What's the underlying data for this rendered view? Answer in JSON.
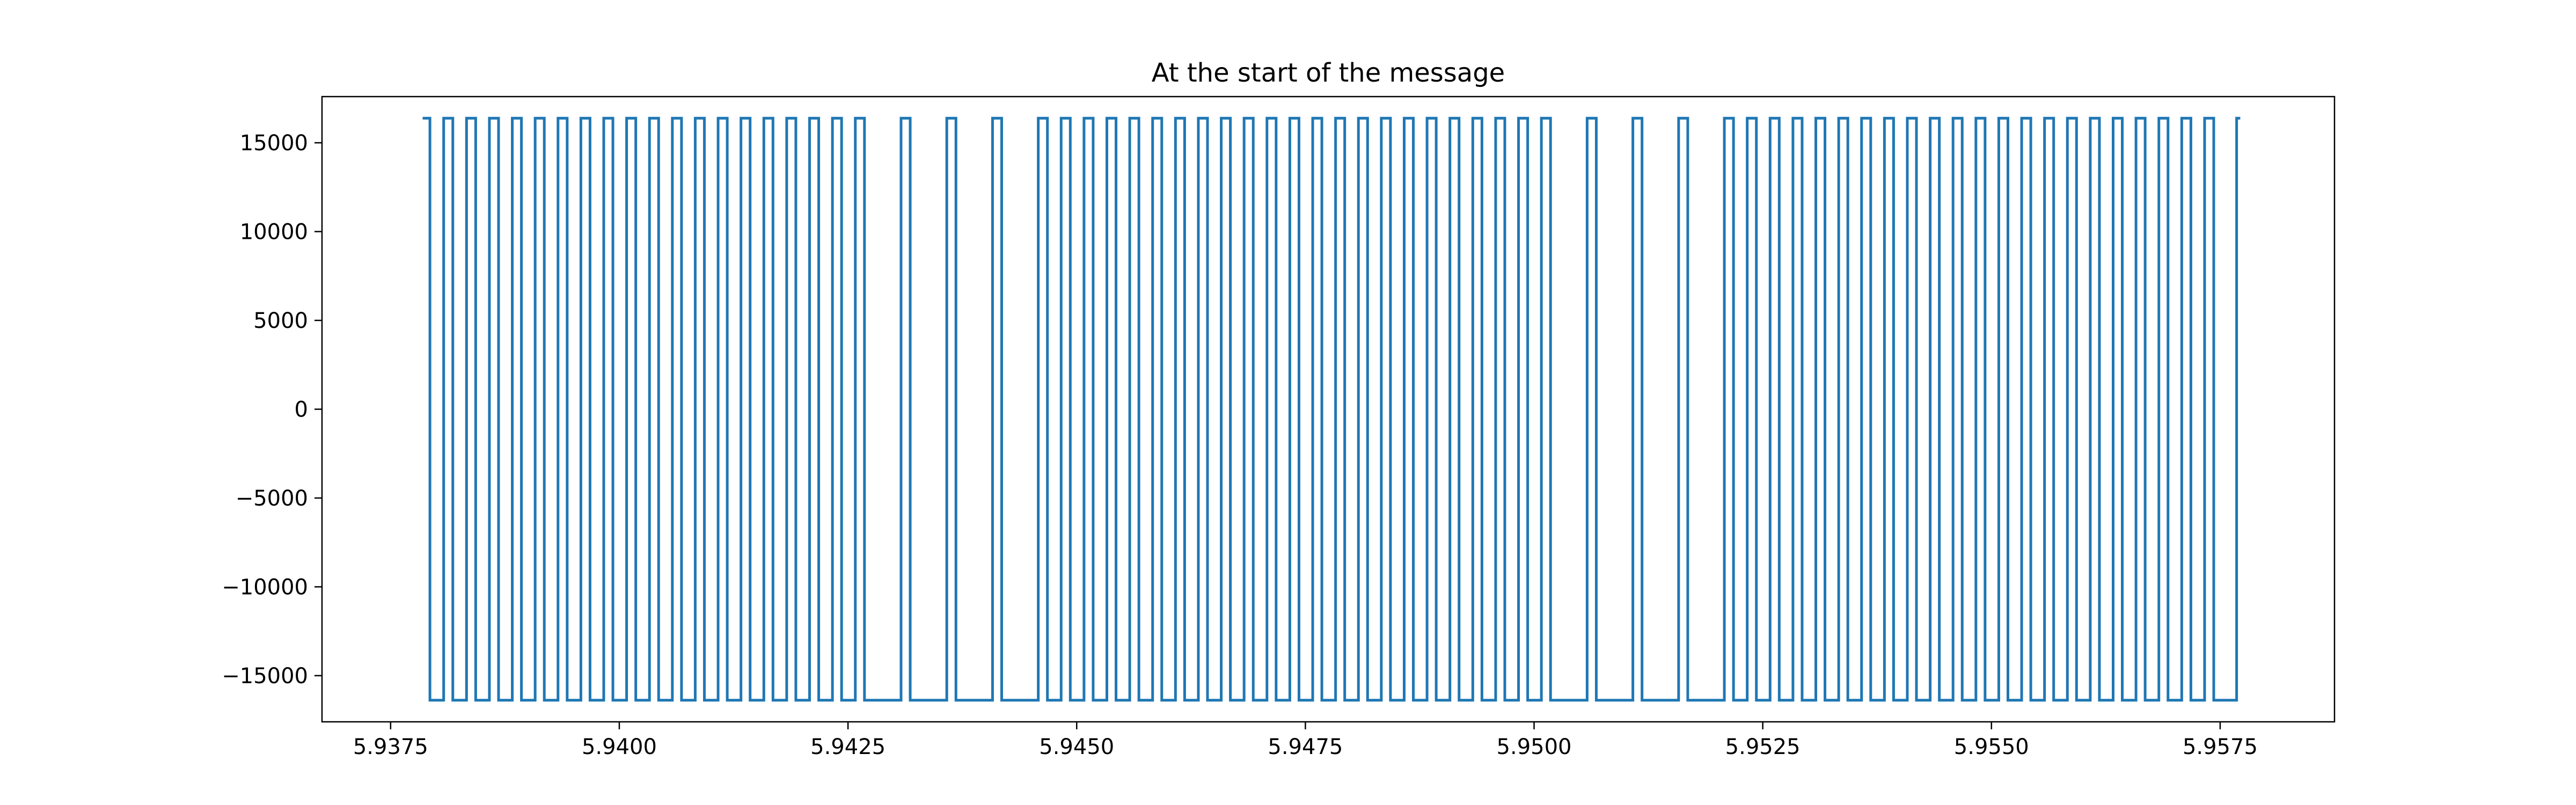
{
  "chart_data": {
    "type": "line",
    "title": "At the start of the message",
    "xlabel": "",
    "ylabel": "",
    "xlim": [
      5.93675,
      5.95875
    ],
    "ylim": [
      -17600,
      17600
    ],
    "x_ticks": [
      5.9375,
      5.94,
      5.9425,
      5.945,
      5.9475,
      5.95,
      5.9525,
      5.955,
      5.9575
    ],
    "x_tick_labels": [
      "5.9375",
      "5.9400",
      "5.9425",
      "5.9450",
      "5.9475",
      "5.9500",
      "5.9525",
      "5.9550",
      "5.9575"
    ],
    "y_ticks": [
      -15000,
      -10000,
      -5000,
      0,
      5000,
      10000,
      15000
    ],
    "y_tick_labels": [
      "−15000",
      "−10000",
      "−5000",
      "0",
      "5000",
      "10000",
      "15000"
    ],
    "grid": false,
    "series": [
      {
        "color": "#1f77b4",
        "high": 16384,
        "low": -16384,
        "x_start": 5.93785,
        "x_end": 5.95772,
        "initial_level": "high",
        "transitions": [
          5.93793,
          5.93808,
          5.93818,
          5.93833,
          5.93843,
          5.93858,
          5.93868,
          5.93883,
          5.93893,
          5.93908,
          5.93918,
          5.93933,
          5.93943,
          5.93958,
          5.93968,
          5.93983,
          5.93993,
          5.94008,
          5.94018,
          5.94033,
          5.94043,
          5.94058,
          5.94068,
          5.94083,
          5.94093,
          5.94108,
          5.94118,
          5.94133,
          5.94143,
          5.94158,
          5.94168,
          5.94183,
          5.94193,
          5.94208,
          5.94218,
          5.94233,
          5.94243,
          5.94258,
          5.94268,
          5.94308,
          5.94318,
          5.94358,
          5.94368,
          5.94408,
          5.94418,
          5.94458,
          5.94468,
          5.94483,
          5.94493,
          5.94508,
          5.94518,
          5.94533,
          5.94543,
          5.94558,
          5.94568,
          5.94583,
          5.94593,
          5.94608,
          5.94618,
          5.94633,
          5.94643,
          5.94658,
          5.94668,
          5.94683,
          5.94693,
          5.94708,
          5.94718,
          5.94733,
          5.94743,
          5.94758,
          5.94768,
          5.94783,
          5.94793,
          5.94808,
          5.94818,
          5.94833,
          5.94843,
          5.94858,
          5.94868,
          5.94883,
          5.94893,
          5.94908,
          5.94918,
          5.94933,
          5.94943,
          5.94958,
          5.94968,
          5.94983,
          5.94993,
          5.95008,
          5.95018,
          5.95058,
          5.95068,
          5.95108,
          5.95118,
          5.95158,
          5.95168,
          5.95208,
          5.95218,
          5.95233,
          5.95243,
          5.95258,
          5.95268,
          5.95283,
          5.95293,
          5.95308,
          5.95318,
          5.95333,
          5.95343,
          5.95358,
          5.95368,
          5.95383,
          5.95393,
          5.95408,
          5.95418,
          5.95433,
          5.95443,
          5.95458,
          5.95468,
          5.95483,
          5.95493,
          5.95508,
          5.95518,
          5.95533,
          5.95543,
          5.95558,
          5.95568,
          5.95583,
          5.95593,
          5.95608,
          5.95618,
          5.95633,
          5.95643,
          5.95658,
          5.95668,
          5.95683,
          5.95693,
          5.95708,
          5.95718,
          5.95733,
          5.95743,
          5.95768
        ]
      }
    ]
  }
}
